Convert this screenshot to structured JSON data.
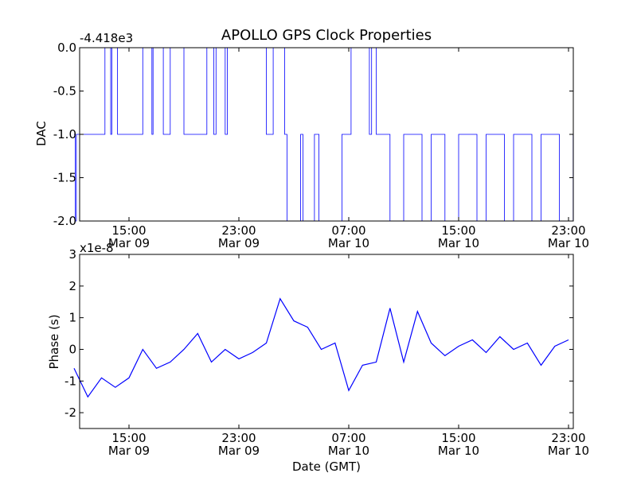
{
  "chart_data": [
    {
      "type": "line",
      "title": "APOLLO GPS Clock Properties",
      "ylabel": "DAC",
      "offset_label": "-4.418e3",
      "ylim": [
        -2.0,
        0.0
      ],
      "y_ticks": [
        "0.0",
        "-0.5",
        "-1.0",
        "-1.5",
        "-2.0"
      ],
      "y_tick_values": [
        0.0,
        -0.5,
        -1.0,
        -1.5,
        -2.0
      ],
      "x_ticks": [
        {
          "time": "15:00",
          "date": "Mar 09"
        },
        {
          "time": "23:00",
          "date": "Mar 09"
        },
        {
          "time": "07:00",
          "date": "Mar 10"
        },
        {
          "time": "15:00",
          "date": "Mar 10"
        },
        {
          "time": "23:00",
          "date": "Mar 10"
        }
      ],
      "x_range": [
        "Mar 09 11:00 (approx)",
        "Mar 10 23:30 (approx)"
      ],
      "series": [
        {
          "color": "#0000ff",
          "points": [
            [
              "Mar 09 11:00",
              -1.0
            ],
            [
              "Mar 09 11:05",
              -2.0
            ],
            [
              "Mar 09 11:10",
              -1.0
            ],
            [
              "Mar 09 13:15",
              0.0
            ],
            [
              "Mar 09 13:40",
              -1.0
            ],
            [
              "Mar 09 13:45",
              0.0
            ],
            [
              "Mar 09 14:10",
              -1.0
            ],
            [
              "Mar 09 16:00",
              0.0
            ],
            [
              "Mar 09 16:40",
              -1.0
            ],
            [
              "Mar 09 16:45",
              0.0
            ],
            [
              "Mar 09 17:30",
              -1.0
            ],
            [
              "Mar 09 18:00",
              0.0
            ],
            [
              "Mar 09 19:00",
              -1.0
            ],
            [
              "Mar 09 20:40",
              0.0
            ],
            [
              "Mar 09 21:10",
              -1.0
            ],
            [
              "Mar 09 21:20",
              0.0
            ],
            [
              "Mar 09 22:00",
              -1.0
            ],
            [
              "Mar 09 22:10",
              0.0
            ],
            [
              "Mar 10 01:00",
              -1.0
            ],
            [
              "Mar 10 01:30",
              0.0
            ],
            [
              "Mar 10 02:20",
              -1.0
            ],
            [
              "Mar 10 02:30",
              -2.0
            ],
            [
              "Mar 10 03:30",
              -1.0
            ],
            [
              "Mar 10 03:40",
              -2.0
            ],
            [
              "Mar 10 04:30",
              -1.0
            ],
            [
              "Mar 10 04:50",
              -2.0
            ],
            [
              "Mar 10 06:30",
              -1.0
            ],
            [
              "Mar 10 07:10",
              0.0
            ],
            [
              "Mar 10 08:30",
              -1.0
            ],
            [
              "Mar 10 08:40",
              0.0
            ],
            [
              "Mar 10 09:00",
              -1.0
            ],
            [
              "Mar 10 10:00",
              -2.0
            ],
            [
              "Mar 10 11:00",
              -1.0
            ],
            [
              "Mar 10 12:20",
              -2.0
            ],
            [
              "Mar 10 13:00",
              -1.0
            ],
            [
              "Mar 10 14:00",
              -2.0
            ],
            [
              "Mar 10 15:00",
              -1.0
            ],
            [
              "Mar 10 16:20",
              -2.0
            ],
            [
              "Mar 10 17:00",
              -1.0
            ],
            [
              "Mar 10 18:20",
              -2.0
            ],
            [
              "Mar 10 19:00",
              -1.0
            ],
            [
              "Mar 10 20:20",
              -2.0
            ],
            [
              "Mar 10 21:00",
              -1.0
            ],
            [
              "Mar 10 22:20",
              -2.0
            ],
            [
              "Mar 10 23:20",
              -1.0
            ]
          ]
        }
      ]
    },
    {
      "type": "line",
      "ylabel": "Phase (s)",
      "xlabel": "Date (GMT)",
      "offset_label": "x1e-8",
      "ylim": [
        -2.5,
        3.0
      ],
      "y_ticks": [
        "3",
        "2",
        "1",
        "0",
        "-1",
        "-2"
      ],
      "y_tick_values": [
        3,
        2,
        1,
        0,
        -1,
        -2
      ],
      "x_ticks": [
        {
          "time": "15:00",
          "date": "Mar 09"
        },
        {
          "time": "23:00",
          "date": "Mar 09"
        },
        {
          "time": "07:00",
          "date": "Mar 10"
        },
        {
          "time": "15:00",
          "date": "Mar 10"
        },
        {
          "time": "23:00",
          "date": "Mar 10"
        }
      ],
      "series": [
        {
          "color": "#0000ff",
          "points": [
            [
              "Mar 09 11:00",
              -0.6
            ],
            [
              "Mar 09 12:00",
              -1.5
            ],
            [
              "Mar 09 13:00",
              -0.9
            ],
            [
              "Mar 09 14:00",
              -1.2
            ],
            [
              "Mar 09 15:00",
              -0.9
            ],
            [
              "Mar 09 16:00",
              0.0
            ],
            [
              "Mar 09 17:00",
              -0.6
            ],
            [
              "Mar 09 18:00",
              -0.4
            ],
            [
              "Mar 09 19:00",
              0.0
            ],
            [
              "Mar 09 20:00",
              0.5
            ],
            [
              "Mar 09 21:00",
              -0.4
            ],
            [
              "Mar 09 22:00",
              0.0
            ],
            [
              "Mar 09 23:00",
              -0.3
            ],
            [
              "Mar 10 00:00",
              -0.1
            ],
            [
              "Mar 10 01:00",
              0.2
            ],
            [
              "Mar 10 02:00",
              1.6
            ],
            [
              "Mar 10 03:00",
              0.9
            ],
            [
              "Mar 10 04:00",
              0.7
            ],
            [
              "Mar 10 05:00",
              0.0
            ],
            [
              "Mar 10 06:00",
              0.2
            ],
            [
              "Mar 10 07:00",
              -1.3
            ],
            [
              "Mar 10 08:00",
              -0.5
            ],
            [
              "Mar 10 09:00",
              -0.4
            ],
            [
              "Mar 10 10:00",
              1.3
            ],
            [
              "Mar 10 11:00",
              -0.4
            ],
            [
              "Mar 10 12:00",
              1.2
            ],
            [
              "Mar 10 13:00",
              0.2
            ],
            [
              "Mar 10 14:00",
              -0.2
            ],
            [
              "Mar 10 15:00",
              0.1
            ],
            [
              "Mar 10 16:00",
              0.3
            ],
            [
              "Mar 10 17:00",
              -0.1
            ],
            [
              "Mar 10 18:00",
              0.4
            ],
            [
              "Mar 10 19:00",
              0.0
            ],
            [
              "Mar 10 20:00",
              0.2
            ],
            [
              "Mar 10 21:00",
              -0.5
            ],
            [
              "Mar 10 22:00",
              0.1
            ],
            [
              "Mar 10 23:00",
              0.3
            ]
          ]
        }
      ]
    }
  ]
}
